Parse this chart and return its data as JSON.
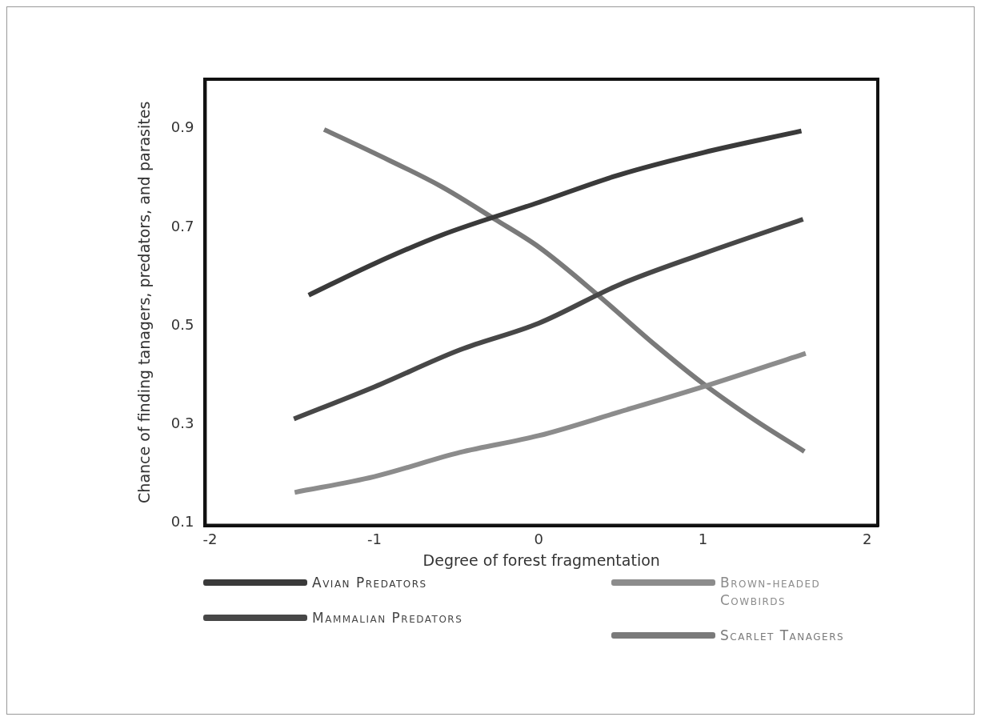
{
  "chart_data": {
    "type": "line",
    "xlabel": "Degree of forest fragmentation",
    "ylabel": "Chance of finding tanagers, predators, and parasites",
    "xlim": [
      -2.03,
      2.065
    ],
    "ylim": [
      0.095,
      1.0
    ],
    "xticks": [
      -2,
      -1,
      0,
      1,
      2
    ],
    "yticks": [
      {
        "value": 0.1,
        "label": "0.1"
      },
      {
        "value": 0.3,
        "label": "0.3"
      },
      {
        "value": 0.5,
        "label": "0.5"
      },
      {
        "value": 0.7,
        "label": "0.7"
      },
      {
        "value": 0.9,
        "label": "0.9"
      }
    ],
    "grid": false,
    "legend": "bottom",
    "marker": "none",
    "line_style": "solid",
    "series": [
      {
        "name": "Avian Predators",
        "color": "#3a3a3a",
        "x": [
          -1.4,
          -1,
          -0.59,
          0,
          0.49,
          1,
          1.6
        ],
        "values": [
          0.562,
          0.626,
          0.684,
          0.75,
          0.806,
          0.851,
          0.895
        ]
      },
      {
        "name": "Mammalian Predators",
        "color": "#474747",
        "x": [
          -1.49,
          -1,
          -0.48,
          0,
          0.49,
          1,
          1.61
        ],
        "values": [
          0.311,
          0.376,
          0.451,
          0.505,
          0.583,
          0.646,
          0.716
        ]
      },
      {
        "name": "Brown-headed Cowbirds",
        "color": "#8c8c8c",
        "x": [
          -1.485,
          -1,
          -0.48,
          0,
          0.49,
          1,
          1.626
        ],
        "values": [
          0.162,
          0.194,
          0.243,
          0.277,
          0.325,
          0.376,
          0.444
        ]
      },
      {
        "name": "Scarlet Tanagers",
        "color": "#7a7a7a",
        "x": [
          -1.306,
          -1,
          -0.59,
          -0.266,
          0,
          0.358,
          0.71,
          1,
          1.306,
          1.618
        ],
        "values": [
          0.898,
          0.85,
          0.782,
          0.716,
          0.66,
          0.563,
          0.461,
          0.383,
          0.311,
          0.245
        ]
      }
    ]
  }
}
